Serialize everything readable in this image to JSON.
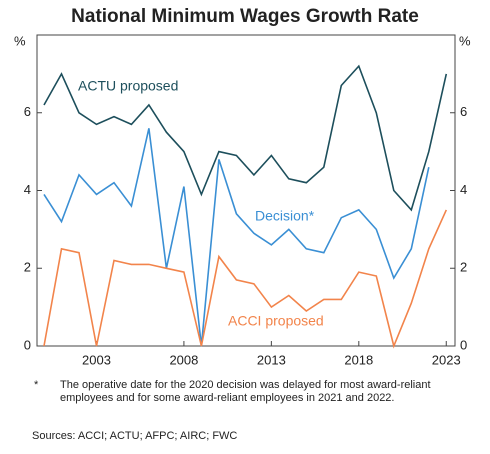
{
  "chart_data": {
    "type": "line",
    "title": "National Minimum Wages Growth Rate",
    "y_unit": "%",
    "y2_unit": "%",
    "x": [
      2000,
      2001,
      2002,
      2003,
      2004,
      2005,
      2006,
      2007,
      2008,
      2009,
      2010,
      2011,
      2012,
      2013,
      2014,
      2015,
      2016,
      2017,
      2018,
      2019,
      2020,
      2021,
      2022,
      2023
    ],
    "series": [
      {
        "name": "ACTU proposed",
        "color": "#1d4f5c",
        "values": [
          6.2,
          7.0,
          6.0,
          5.7,
          5.9,
          5.7,
          6.2,
          5.5,
          5.0,
          3.9,
          5.0,
          4.9,
          4.4,
          4.9,
          4.3,
          4.2,
          4.6,
          6.7,
          7.2,
          6.0,
          4.0,
          3.5,
          5.0,
          7.0
        ]
      },
      {
        "name": "Decision*",
        "color": "#3a8fd4",
        "values": [
          3.9,
          3.2,
          4.4,
          3.9,
          4.2,
          3.6,
          5.6,
          2.0,
          4.1,
          0,
          4.8,
          3.4,
          2.9,
          2.6,
          3.0,
          2.5,
          2.4,
          3.3,
          3.5,
          3.0,
          1.75,
          2.5,
          4.6,
          null
        ]
      },
      {
        "name": "ACCI proposed",
        "color": "#f2844b",
        "values": [
          0,
          2.5,
          2.4,
          0,
          2.2,
          2.1,
          2.1,
          2.0,
          1.9,
          0,
          2.3,
          1.7,
          1.6,
          1.0,
          1.3,
          0.9,
          1.2,
          1.2,
          1.9,
          1.8,
          0,
          1.1,
          2.5,
          3.5
        ]
      }
    ],
    "xlim": [
      1999.6,
      2023.5
    ],
    "xticks": [
      2003,
      2008,
      2013,
      2018,
      2023
    ],
    "ylim": [
      0,
      8
    ],
    "yticks": [
      0,
      2,
      4,
      6
    ],
    "y2lim": [
      0,
      8
    ],
    "y2ticks": [
      0,
      2,
      4,
      6
    ],
    "grid": false,
    "footnote": {
      "marker": "*",
      "text": "The operative date for the 2020 decision was delayed for most award-reliant employees and for some award-reliant employees in 2021 and 2022."
    },
    "source": "Sources: ACCI; ACTU; AFPC; AIRC; FWC"
  }
}
